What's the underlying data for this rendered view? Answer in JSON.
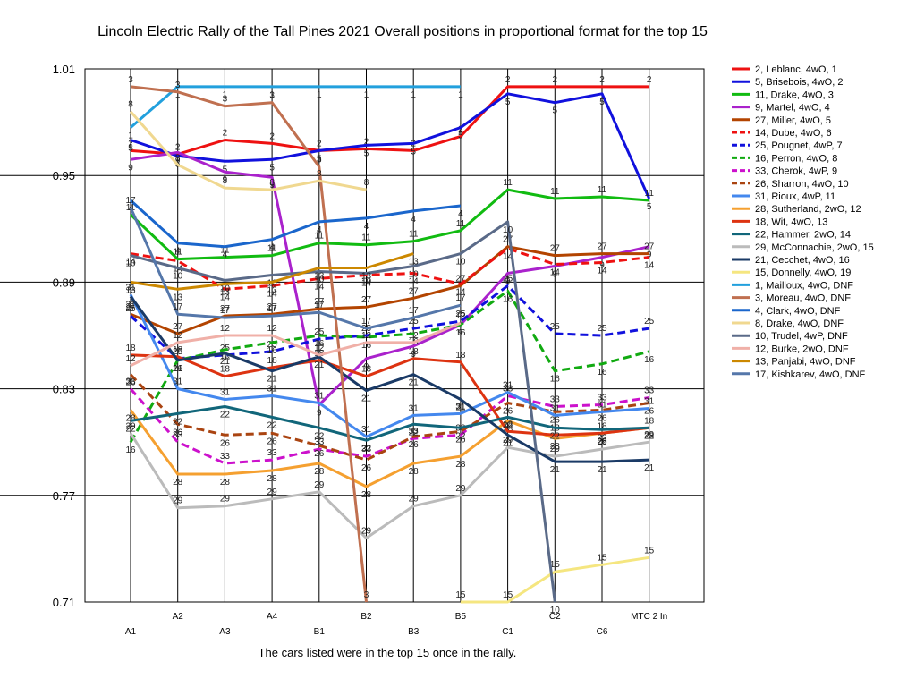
{
  "chart_data": {
    "type": "line",
    "title": "Lincoln Electric Rally of the Tall Pines 2021  Overall positions in proportional format for the top 15",
    "footer": "The cars listed were in the top 15 once in the rally.",
    "x_ticks_low": [
      "A1",
      "A3",
      "B1",
      "B3",
      "C1",
      "C6"
    ],
    "x_ticks_high": [
      "A2",
      "A4",
      "B2",
      "B5",
      "C2",
      "MTC 2 In"
    ],
    "categories": [
      "A1",
      "A2",
      "A3",
      "A4",
      "B1",
      "B2",
      "B3",
      "B5",
      "C1",
      "C2",
      "C6",
      "MTC 2 In"
    ],
    "ylim": [
      0.71,
      1.01
    ],
    "y_ticks": [
      "0.71",
      "0.77",
      "0.83",
      "0.89",
      "0.95",
      "1.01"
    ],
    "grid": "horizontal",
    "legend_position": "right",
    "series": [
      {
        "name": "2, Leblanc, 4wO, 1",
        "label": "2",
        "color": "#ee1111",
        "dash": false,
        "values": [
          0.964,
          0.962,
          0.97,
          0.968,
          0.964,
          0.965,
          0.964,
          0.972,
          1.0,
          1.0,
          1.0,
          1.0
        ]
      },
      {
        "name": "5, Brisebois, 4wO, 2",
        "label": "5",
        "color": "#1111dd",
        "dash": false,
        "values": [
          0.97,
          0.961,
          0.958,
          0.959,
          0.964,
          0.967,
          0.968,
          0.977,
          0.996,
          0.991,
          0.996,
          0.937
        ]
      },
      {
        "name": "11, Drake, 4wO, 3",
        "label": "11",
        "color": "#11bb11",
        "dash": false,
        "values": [
          0.928,
          0.903,
          0.904,
          0.905,
          0.912,
          0.911,
          0.913,
          0.919,
          0.942,
          0.937,
          0.938,
          0.936
        ]
      },
      {
        "name": "9, Martel, 4wO, 4",
        "label": "9",
        "color": "#aa22cc",
        "dash": false,
        "values": [
          0.959,
          0.963,
          0.952,
          0.949,
          0.821,
          0.847,
          0.854,
          0.866,
          0.895,
          0.899,
          0.904,
          0.91
        ]
      },
      {
        "name": "27, Miller, 4wO, 5",
        "label": "27",
        "color": "#b34400",
        "dash": false,
        "values": [
          0.872,
          0.861,
          0.871,
          0.872,
          0.875,
          0.876,
          0.881,
          0.888,
          0.91,
          0.905,
          0.906,
          0.906
        ]
      },
      {
        "name": "14, Dube, 4wO, 6",
        "label": "14",
        "color": "#ee1111",
        "dash": true,
        "values": [
          0.906,
          0.902,
          0.886,
          0.888,
          0.892,
          0.894,
          0.895,
          0.889,
          0.909,
          0.9,
          0.901,
          0.904
        ]
      },
      {
        "name": "25, Pougnet, 4wP, 7",
        "label": "25",
        "color": "#1111dd",
        "dash": true,
        "values": [
          0.871,
          0.847,
          0.849,
          0.851,
          0.858,
          0.86,
          0.864,
          0.868,
          0.888,
          0.861,
          0.86,
          0.864
        ]
      },
      {
        "name": "16, Perron, 4wO, 8",
        "label": "16",
        "color": "#11aa11",
        "dash": true,
        "values": [
          0.8,
          0.846,
          0.852,
          0.856,
          0.86,
          0.859,
          0.861,
          0.866,
          0.885,
          0.84,
          0.844,
          0.851
        ]
      },
      {
        "name": "33, Cherok, 4wP, 9",
        "label": "33",
        "color": "#cc11cc",
        "dash": true,
        "values": [
          0.83,
          0.8,
          0.788,
          0.79,
          0.796,
          0.792,
          0.802,
          0.804,
          0.826,
          0.82,
          0.821,
          0.825
        ]
      },
      {
        "name": "26, Sharron, 4wO, 10",
        "label": "26",
        "color": "#aa4411",
        "dash": true,
        "values": [
          0.838,
          0.81,
          0.804,
          0.805,
          0.798,
          0.79,
          0.803,
          0.806,
          0.822,
          0.817,
          0.818,
          0.822
        ]
      },
      {
        "name": "31, Rioux, 4wP, 11",
        "label": "31",
        "color": "#4488ee",
        "dash": false,
        "values": [
          0.883,
          0.83,
          0.824,
          0.826,
          0.822,
          0.803,
          0.815,
          0.816,
          0.828,
          0.815,
          0.817,
          0.819
        ]
      },
      {
        "name": "28, Sutherland, 2wO, 12",
        "label": "28",
        "color": "#f5a030",
        "dash": false,
        "values": [
          0.818,
          0.782,
          0.782,
          0.784,
          0.788,
          0.775,
          0.788,
          0.792,
          0.812,
          0.802,
          0.805,
          0.808
        ]
      },
      {
        "name": "18, Wit, 4wO, 13",
        "label": "18",
        "color": "#dd3311",
        "dash": false,
        "values": [
          0.849,
          0.848,
          0.837,
          0.842,
          0.846,
          0.837,
          0.847,
          0.845,
          0.806,
          0.804,
          0.805,
          0.808
        ]
      },
      {
        "name": "22, Hammer, 2wO, 14",
        "label": "22",
        "color": "#11667a",
        "dash": false,
        "values": [
          0.812,
          0.816,
          0.82,
          0.814,
          0.808,
          0.801,
          0.81,
          0.808,
          0.814,
          0.808,
          0.807,
          0.808
        ]
      },
      {
        "name": "29, McConnachie, 2wO, 15",
        "label": "29",
        "color": "#bbbbbb",
        "dash": false,
        "values": [
          0.805,
          0.763,
          0.764,
          0.768,
          0.772,
          0.746,
          0.764,
          0.77,
          0.797,
          0.792,
          0.796,
          0.8
        ]
      },
      {
        "name": "21, Cecchet, 4wO, 16",
        "label": "21",
        "color": "#1a3a66",
        "dash": false,
        "values": [
          0.882,
          0.846,
          0.85,
          0.84,
          0.848,
          0.829,
          0.838,
          0.824,
          0.804,
          0.789,
          0.789,
          0.79
        ]
      },
      {
        "name": "15, Donnelly, 4wO, 19",
        "label": "15",
        "color": "#f5e680",
        "dash": false,
        "values": [
          null,
          null,
          null,
          null,
          null,
          null,
          null,
          0.71,
          0.71,
          0.727,
          0.731,
          0.735
        ]
      },
      {
        "name": "1, Mailloux, 4wO,  DNF",
        "label": "1",
        "color": "#22a0dd",
        "dash": false,
        "values": [
          0.977,
          1.0,
          1.0,
          1.0,
          1.0,
          1.0,
          1.0,
          1.0,
          null,
          null,
          null,
          null
        ]
      },
      {
        "name": "3, Moreau, 4wO,  DNF",
        "label": "3",
        "color": "#c07050",
        "dash": false,
        "values": [
          1.0,
          0.997,
          0.989,
          0.991,
          0.955,
          0.71,
          null,
          null,
          null,
          null,
          null,
          null
        ]
      },
      {
        "name": "4, Clark, 4wO,  DNF",
        "label": "4",
        "color": "#1a66cc",
        "dash": false,
        "values": [
          0.936,
          0.912,
          0.91,
          0.914,
          0.924,
          0.926,
          0.93,
          0.933,
          null,
          null,
          null,
          null
        ]
      },
      {
        "name": "8, Drake, 4wO,  DNF",
        "label": "8",
        "color": "#f0d890",
        "dash": false,
        "values": [
          0.986,
          0.956,
          0.943,
          0.942,
          0.947,
          0.942,
          null,
          null,
          null,
          null,
          null,
          null
        ]
      },
      {
        "name": "10, Trudel, 4wP, DNF",
        "label": "10",
        "color": "#5a6a88",
        "dash": false,
        "values": [
          0.905,
          0.898,
          0.891,
          0.894,
          0.896,
          0.895,
          0.899,
          0.906,
          0.924,
          0.71,
          null,
          null
        ]
      },
      {
        "name": "12, Burke, 2wO,  DNF",
        "label": "12",
        "color": "#f0b0a8",
        "dash": false,
        "values": [
          0.843,
          0.856,
          0.86,
          0.86,
          0.849,
          0.856,
          0.856,
          0.867,
          null,
          null,
          null,
          null
        ]
      },
      {
        "name": "13, Panjabi, 4wO,  DNF",
        "label": "13",
        "color": "#cc8800",
        "dash": false,
        "values": [
          0.89,
          0.886,
          0.889,
          0.89,
          0.898,
          0.898,
          0.906,
          null,
          null,
          null,
          null,
          null
        ]
      },
      {
        "name": "17, Kishkarev, 4wO, DNF",
        "label": "17",
        "color": "#5577aa",
        "dash": false,
        "values": [
          0.932,
          0.872,
          0.87,
          0.871,
          0.873,
          0.864,
          0.87,
          0.877,
          null,
          null,
          null,
          null
        ]
      }
    ]
  }
}
